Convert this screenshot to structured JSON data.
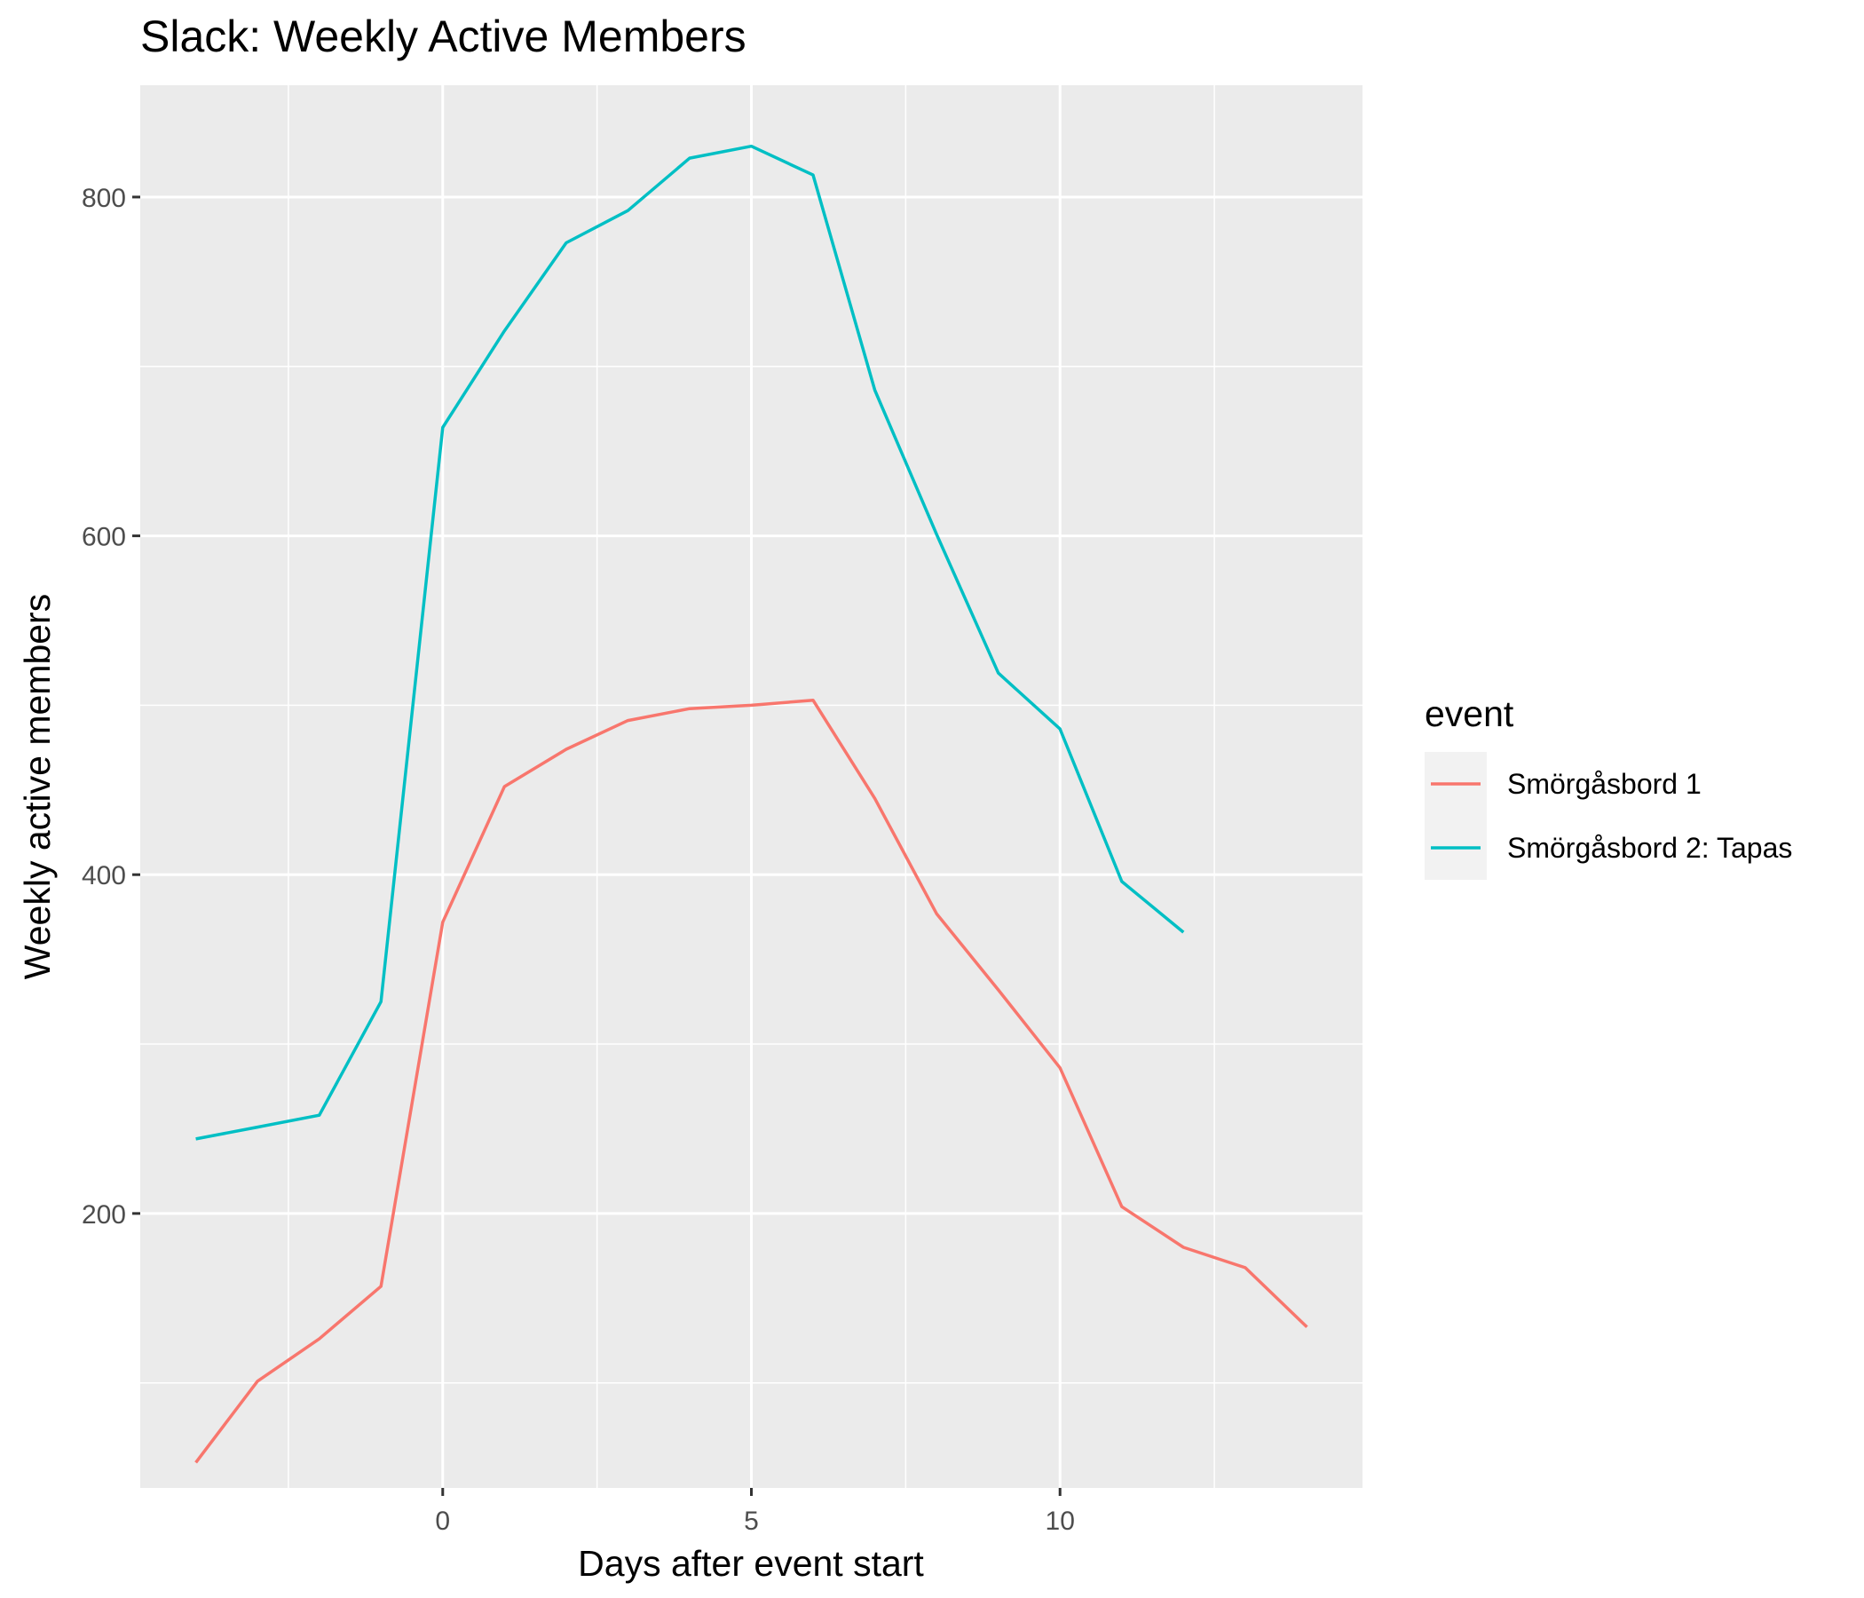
{
  "chart_data": {
    "type": "line",
    "title": "Slack: Weekly Active Members",
    "xlabel": "Days after event start",
    "ylabel": "Weekly active members",
    "xlim": [
      -4.9,
      14.9
    ],
    "ylim": [
      38,
      866
    ],
    "x_ticks": [
      0,
      5,
      10
    ],
    "x_minor_ticks": [
      -2.5,
      2.5,
      7.5,
      12.5
    ],
    "y_ticks": [
      200,
      400,
      600,
      800
    ],
    "y_minor_ticks": [
      100,
      300,
      500,
      700
    ],
    "grid": true,
    "legend": {
      "title": "event",
      "placement": "right"
    },
    "series": [
      {
        "name": "Smörgåsbord 1",
        "color": "#F8766D",
        "x": [
          -4,
          -3,
          -2,
          -1,
          0,
          1,
          2,
          3,
          4,
          5,
          6,
          7,
          8,
          9,
          10,
          11,
          12,
          13,
          14
        ],
        "values": [
          53,
          101,
          126,
          157,
          372,
          452,
          474,
          491,
          498,
          500,
          503,
          445,
          377,
          332,
          286,
          204,
          180,
          168,
          133
        ]
      },
      {
        "name": "Smörgåsbord 2: Tapas",
        "color": "#00BFC4",
        "x": [
          -4,
          -3,
          -2,
          -1,
          0,
          1,
          2,
          3,
          4,
          5,
          6,
          7,
          8,
          9,
          10,
          11,
          12
        ],
        "values": [
          244,
          251,
          258,
          325,
          664,
          721,
          773,
          792,
          823,
          830,
          813,
          686,
          601,
          519,
          486,
          396,
          366
        ]
      }
    ]
  }
}
